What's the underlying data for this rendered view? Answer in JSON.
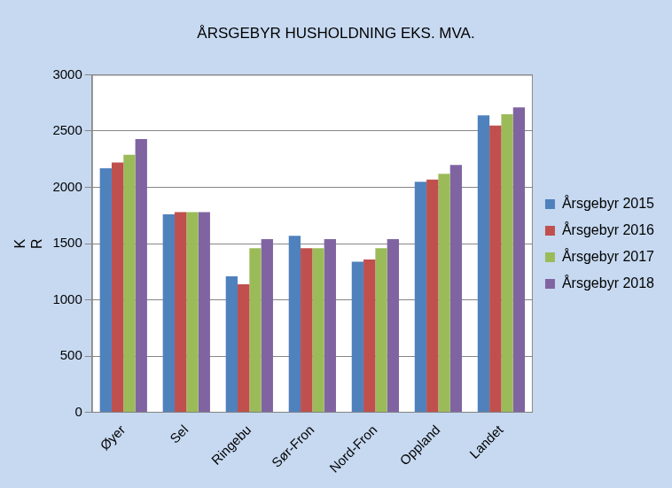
{
  "chart_data": {
    "type": "bar",
    "title": "ÅRSGEBYR HUSHOLDNING EKS. MVA.",
    "y_label": "KR",
    "categories": [
      "Øyer",
      "Sel",
      "Ringebu",
      "Sør-Fron",
      "Nord-Fron",
      "Oppland",
      "Landet"
    ],
    "series": [
      {
        "name": "Årsgebyr 2015",
        "color": "#4f81bd",
        "values": [
          2170,
          1760,
          1210,
          1570,
          1340,
          2050,
          2640
        ]
      },
      {
        "name": "Årsgebyr 2016",
        "color": "#c0504d",
        "values": [
          2220,
          1780,
          1140,
          1460,
          1360,
          2070,
          2550
        ]
      },
      {
        "name": "Årsgebyr 2017",
        "color": "#9bbb59",
        "values": [
          2290,
          1780,
          1460,
          1460,
          1460,
          2120,
          2650
        ]
      },
      {
        "name": "Årsgebyr 2018",
        "color": "#8064a2",
        "values": [
          2430,
          1780,
          1540,
          1540,
          1540,
          2200,
          2710
        ]
      }
    ],
    "ylim": [
      0,
      3000
    ],
    "yticks": [
      0,
      500,
      1000,
      1500,
      2000,
      2500,
      3000
    ],
    "grid": true,
    "legend": "right"
  }
}
